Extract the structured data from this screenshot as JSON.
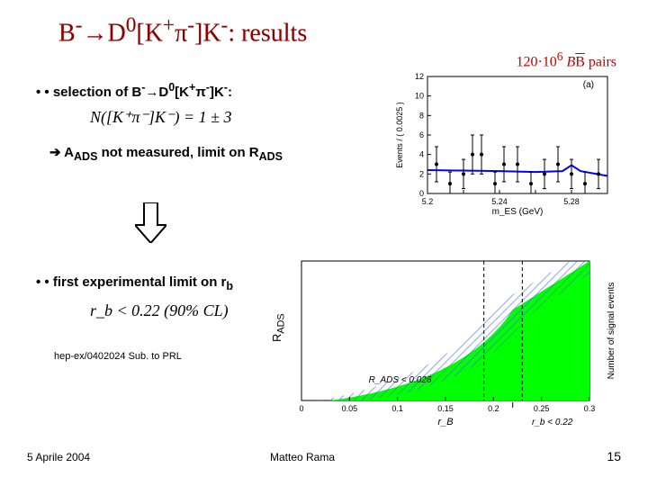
{
  "title_html": "B<sup>-</sup>→D<sup>0</sup>[K<sup>+</sup>π<sup>-</sup>]K<sup>-</sup>: results",
  "pairs_html": "120·10<sup>6</sup> <i>B</i><span class='overline'>B</span> pairs",
  "bullet1_html": "selection of B<sup>-</sup>→D<sup>0</sup>[K<sup>+</sup>π<sup>-</sup>]K<sup>-</sup>:",
  "formula1": "N([K⁺π⁻]K⁻) = 1 ± 3",
  "arrow_line_html": "➔ A<sub>ADS</sub> not measured, limit on R<sub>ADS</sub>",
  "bullet2_html": "first experimental limit on r<sub>b</sub>",
  "formula2": "r_b < 0.22 (90% CL)",
  "rads_label_html": "R<sub>ADS</sub>",
  "hep_ref": "hep-ex/0402024 Sub. to PRL",
  "footer_date": "5 Aprile 2004",
  "footer_name": "Matteo Rama",
  "footer_page": "15",
  "chart_top": {
    "type": "scatter_errorbars",
    "xlabel": "m_ES (GeV)",
    "ylabel": "Events / ( 0.0025 )",
    "xlim": [
      5.2,
      5.3
    ],
    "ylim": [
      0,
      12
    ],
    "xticks": [
      5.2,
      5.22,
      5.24,
      5.26,
      5.28,
      5.3
    ],
    "yticks": [
      0,
      2,
      4,
      6,
      8,
      10,
      12
    ],
    "annotation": "(a)",
    "background": "#ffffff",
    "axis_color": "#000000",
    "curve_color": "#0000ff",
    "marker_color": "#000000",
    "points": [
      {
        "x": 5.205,
        "y": 3,
        "err": 1.8
      },
      {
        "x": 5.2125,
        "y": 1,
        "err": 1.2
      },
      {
        "x": 5.22,
        "y": 2,
        "err": 1.5
      },
      {
        "x": 5.225,
        "y": 4,
        "err": 2.0
      },
      {
        "x": 5.23,
        "y": 4,
        "err": 2.0
      },
      {
        "x": 5.2375,
        "y": 1,
        "err": 1.2
      },
      {
        "x": 5.2425,
        "y": 3,
        "err": 1.8
      },
      {
        "x": 5.25,
        "y": 3,
        "err": 1.8
      },
      {
        "x": 5.2575,
        "y": 1,
        "err": 1.2
      },
      {
        "x": 5.265,
        "y": 2,
        "err": 1.5
      },
      {
        "x": 5.2725,
        "y": 3,
        "err": 1.8
      },
      {
        "x": 5.28,
        "y": 2,
        "err": 1.5
      },
      {
        "x": 5.2875,
        "y": 1,
        "err": 1.2
      },
      {
        "x": 5.295,
        "y": 2,
        "err": 1.5
      }
    ],
    "curve": [
      {
        "x": 5.2,
        "y": 2.4
      },
      {
        "x": 5.22,
        "y": 2.35
      },
      {
        "x": 5.24,
        "y": 2.3
      },
      {
        "x": 5.26,
        "y": 2.2
      },
      {
        "x": 5.275,
        "y": 2.3
      },
      {
        "x": 5.28,
        "y": 2.9
      },
      {
        "x": 5.285,
        "y": 2.3
      },
      {
        "x": 5.3,
        "y": 1.8
      }
    ]
  },
  "chart_bottom": {
    "type": "filled_region",
    "xlabel": "r_B",
    "ylabel_right": "Number of signal events",
    "xlim": [
      0,
      0.3
    ],
    "ylim": [
      0,
      1
    ],
    "xticks": [
      0,
      0.05,
      0.1,
      0.15,
      0.2,
      0.25,
      0.3
    ],
    "rb_limit": 0.22,
    "rads_text": "R_ADS < 0.026",
    "fill_color": "#00ff00",
    "hatch_color": "#4169e1",
    "background": "#ffffff",
    "axis_color": "#000000",
    "dash_x1": 0.19,
    "dash_x2": 0.23
  }
}
